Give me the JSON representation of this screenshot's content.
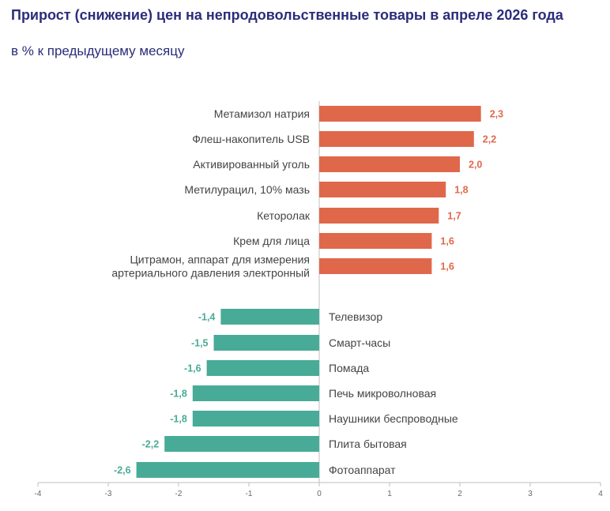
{
  "chart_data": {
    "type": "bar",
    "orientation": "horizontal",
    "title": "Прирост (снижение) цен на непродовольственные товары в апреле 2026 года",
    "subtitle": "в % к предыдущему месяцу",
    "categories": [
      "Метамизол натрия",
      "Флеш-накопитель USB",
      "Активированный уголь",
      "Метилурацил, 10% мазь",
      "Кеторолак",
      "Крем для лица",
      "Цитрамон, аппарат для измерения артериального давления электронный",
      "Телевизор",
      "Смарт-часы",
      "Помада",
      "Печь микроволновая",
      "Наушники беспроводные",
      "Плита бытовая",
      "Фотоаппарат"
    ],
    "category_lines": [
      [
        "Метамизол натрия"
      ],
      [
        "Флеш-накопитель USB"
      ],
      [
        "Активированный уголь"
      ],
      [
        "Метилурацил, 10% мазь"
      ],
      [
        "Кеторолак"
      ],
      [
        "Крем для лица"
      ],
      [
        "Цитрамон,  аппарат для измерения",
        "артериального давления электронный"
      ],
      [
        "Телевизор"
      ],
      [
        "Смарт-часы"
      ],
      [
        "Помада"
      ],
      [
        "Печь микроволновая"
      ],
      [
        "Наушники беспроводные"
      ],
      [
        "Плита бытовая"
      ],
      [
        "Фотоаппарат"
      ]
    ],
    "values": [
      2.3,
      2.2,
      2.0,
      1.8,
      1.7,
      1.6,
      1.6,
      -1.4,
      -1.5,
      -1.6,
      -1.8,
      -1.8,
      -2.2,
      -2.6
    ],
    "value_labels": [
      "2,3",
      "2,2",
      "2,0",
      "1,8",
      "1,7",
      "1,6",
      "1,6",
      "-1,4",
      "-1,5",
      "-1,6",
      "-1,8",
      "-1,8",
      "-2,2",
      "-2,6"
    ],
    "xlim": [
      -4,
      4
    ],
    "xticks": [
      -4,
      -3,
      -2,
      -1,
      0,
      1,
      2,
      3,
      4
    ],
    "xtick_labels": [
      "-4",
      "-3",
      "-2",
      "-1",
      "0",
      "1",
      "2",
      "3",
      "4"
    ],
    "grid": false,
    "legend": "none",
    "colors": {
      "positive": "#e0684a",
      "negative": "#48ab97",
      "title": "#2b2d7a",
      "axis": "#bfbfbf"
    }
  }
}
